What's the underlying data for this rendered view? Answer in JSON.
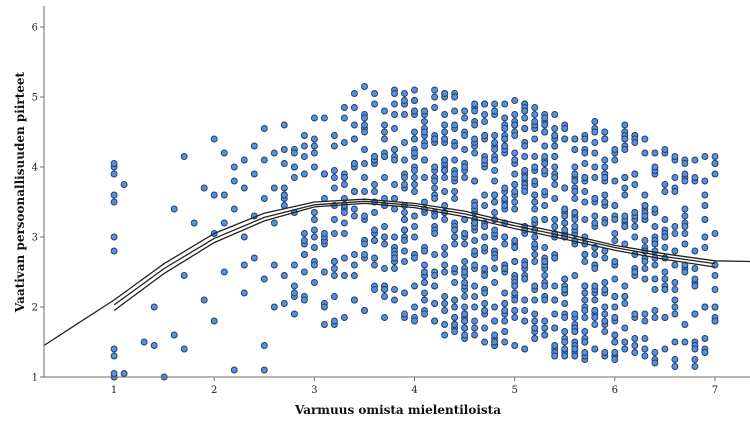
{
  "chart_data": {
    "type": "scatter",
    "xlabel": "Varmuus omista mielentiloista",
    "ylabel": "Vaativan persoonallisuuden piirteet",
    "xlim": [
      0.3,
      7.35
    ],
    "ylim": [
      1,
      6.3
    ],
    "x_ticks": [
      1,
      2,
      3,
      4,
      5,
      6,
      7
    ],
    "y_ticks": [
      1,
      2,
      3,
      4,
      5,
      6
    ],
    "grid": false,
    "legend": "none",
    "point_color": "#5b8fd6",
    "point_edge_color": "#1e3f6e",
    "line_color": "#222222",
    "x_values_observed": [
      1,
      1.1,
      1.3,
      1.4,
      1.5,
      1.6,
      1.7,
      1.8,
      1.9,
      2,
      2.1,
      2.2,
      2.3,
      2.4,
      2.5,
      2.6,
      2.7,
      2.8,
      2.9,
      3,
      3.1,
      3.2,
      3.3,
      3.4,
      3.5,
      3.6,
      3.7,
      3.8,
      3.9,
      4,
      4.1,
      4.2,
      4.3,
      4.4,
      4.5,
      4.6,
      4.7,
      4.8,
      4.9,
      5,
      5.1,
      5.2,
      5.3,
      5.4,
      5.5,
      5.6,
      5.7,
      5.8,
      5.9,
      6,
      6.1,
      6.2,
      6.3,
      6.4,
      6.5,
      6.6,
      6.7,
      6.8,
      6.9,
      7
    ],
    "column_samples": [
      {
        "x": 1,
        "y": [
          1.0,
          1.05,
          1.3,
          1.4,
          2.8,
          3.0,
          3.5,
          3.6,
          3.9,
          4.0,
          4.05
        ]
      },
      {
        "x": 1.1,
        "y": [
          1.05,
          3.75
        ]
      },
      {
        "x": 1.3,
        "y": [
          1.5
        ]
      },
      {
        "x": 1.4,
        "y": [
          1.45,
          2.0
        ]
      },
      {
        "x": 1.5,
        "y": [
          1.0
        ]
      },
      {
        "x": 1.6,
        "y": [
          1.6,
          3.4
        ]
      },
      {
        "x": 1.7,
        "y": [
          1.4,
          2.45,
          4.15
        ]
      },
      {
        "x": 1.8,
        "y": [
          3.2
        ]
      },
      {
        "x": 1.9,
        "y": [
          2.1,
          3.7
        ]
      },
      {
        "x": 2,
        "y": [
          1.8,
          3.05,
          3.6,
          4.4
        ]
      },
      {
        "x": 2.1,
        "y": [
          2.5,
          3.2,
          3.6,
          4.2
        ]
      },
      {
        "x": 2.2,
        "y": [
          1.1,
          3.4,
          3.8,
          4.0
        ]
      },
      {
        "x": 2.3,
        "y": [
          2.2,
          2.6,
          3.0,
          3.7,
          4.1
        ]
      },
      {
        "x": 2.4,
        "y": [
          2.7,
          3.3,
          3.9,
          4.3
        ]
      },
      {
        "x": 2.5,
        "y": [
          1.1,
          1.45,
          2.4,
          3.55,
          4.1,
          4.55
        ]
      },
      {
        "x": 2.6,
        "y": [
          2.0,
          2.6,
          3.2,
          3.7,
          4.2
        ]
      }
    ],
    "fit_lines": [
      {
        "x": [
          0.3,
          0.6,
          1.0,
          1.5,
          2.0,
          2.5,
          3.0,
          3.5,
          4.0,
          4.5,
          5.0,
          5.5,
          6.0,
          6.5,
          7.0,
          7.35
        ],
        "y": [
          1.45,
          1.73,
          2.1,
          2.62,
          3.05,
          3.34,
          3.5,
          3.54,
          3.48,
          3.37,
          3.2,
          3.05,
          2.88,
          2.76,
          2.66,
          2.65
        ]
      },
      {
        "x": [
          1.0,
          1.5,
          2.0,
          2.5,
          3.0,
          3.5,
          4.0,
          4.5,
          5.0,
          5.5,
          6.0,
          6.5,
          7.0
        ],
        "y": [
          2.03,
          2.55,
          2.98,
          3.28,
          3.46,
          3.51,
          3.45,
          3.33,
          3.16,
          3.01,
          2.85,
          2.72,
          2.62
        ]
      },
      {
        "x": [
          1.0,
          1.5,
          2.0,
          2.5,
          3.0,
          3.5,
          4.0,
          4.5,
          5.0,
          5.5,
          6.0,
          6.5,
          7.0
        ],
        "y": [
          1.95,
          2.48,
          2.92,
          3.23,
          3.43,
          3.48,
          3.42,
          3.29,
          3.12,
          2.97,
          2.81,
          2.68,
          2.57
        ]
      }
    ]
  }
}
